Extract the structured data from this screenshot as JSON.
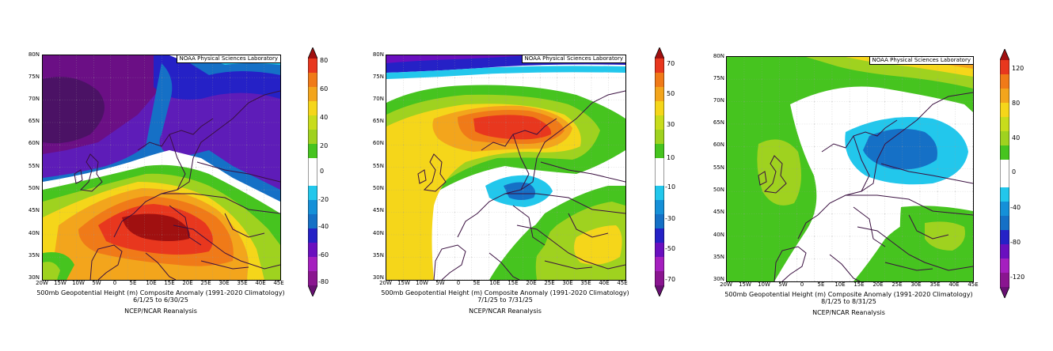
{
  "panels": [
    {
      "id": "june",
      "noaa_label": "NOAA Physical Sciences Laboratory",
      "caption": {
        "line1": "500mb Geopotential Height (m) Composite Anomaly (1991-2020 Climatology)",
        "line2": "6/1/25  to 6/30/25",
        "line3": "NCEP/NCAR Reanalysis"
      },
      "lat_labels": [
        "80N",
        "75N",
        "70N",
        "65N",
        "60N",
        "55N",
        "50N",
        "45N",
        "40N",
        "35N",
        "30N"
      ],
      "lon_labels": [
        "20W",
        "15W",
        "10W",
        "5W",
        "0",
        "5E",
        "10E",
        "15E",
        "20E",
        "25E",
        "30E",
        "35E",
        "40E",
        "45E"
      ],
      "colorbar": {
        "labels": [
          "80",
          "60",
          "40",
          "20",
          "0",
          "-20",
          "-40",
          "-60",
          "-80"
        ],
        "colors": [
          "#a01010",
          "#e8371e",
          "#f07a18",
          "#f3a51c",
          "#f5d61a",
          "#9fd21f",
          "#46c41f",
          "#ffffff",
          "#ffffff",
          "#22c7ec",
          "#1570c6",
          "#2521c6",
          "#6a0fbf",
          "#a51fbf",
          "#681073"
        ]
      }
    },
    {
      "id": "july",
      "noaa_label": "NOAA Physical Sciences Laboratory",
      "caption": {
        "line1": "500mb Geopotential Height (m) Composite Anomaly (1991-2020 Climatology)",
        "line2": "7/1/25  to 7/31/25",
        "line3": "NCEP/NCAR Reanalysis"
      },
      "lat_labels": [
        "80N",
        "75N",
        "70N",
        "65N",
        "60N",
        "55N",
        "50N",
        "45N",
        "40N",
        "35N",
        "30N"
      ],
      "lon_labels": [
        "20W",
        "15W",
        "10W",
        "5W",
        "0",
        "5E",
        "10E",
        "15E",
        "20E",
        "25E",
        "30E",
        "35E",
        "40E",
        "45E"
      ],
      "colorbar": {
        "labels": [
          "70",
          "50",
          "30",
          "10",
          "-10",
          "-30",
          "-50",
          "-70"
        ],
        "colors": [
          "#a01010",
          "#e8371e",
          "#f07a18",
          "#f3a51c",
          "#f5d61a",
          "#9fd21f",
          "#46c41f",
          "#ffffff",
          "#ffffff",
          "#22c7ec",
          "#1570c6",
          "#2521c6",
          "#6a0fbf",
          "#a51fbf",
          "#681073"
        ]
      }
    },
    {
      "id": "august",
      "noaa_label": "NOAA Physical Sciences Laboratory",
      "caption": {
        "line1": "500mb Geopotential Height (m) Composite Anomaly (1991-2020 Climatology)",
        "line2": "8/1/25  to 8/31/25",
        "line3": "NCEP/NCAR Reanalysis"
      },
      "lat_labels": [
        "80N",
        "75N",
        "70N",
        "65N",
        "60N",
        "55N",
        "50N",
        "45N",
        "40N",
        "35N",
        "30N"
      ],
      "lon_labels": [
        "20W",
        "15W",
        "10W",
        "5W",
        "0",
        "5E",
        "10E",
        "15E",
        "20E",
        "25E",
        "30E",
        "35E",
        "40E",
        "45E"
      ],
      "colorbar": {
        "labels": [
          "120",
          "80",
          "40",
          "0",
          "-40",
          "-80",
          "-120"
        ],
        "colors": [
          "#a01010",
          "#e8371e",
          "#f07a18",
          "#f3a51c",
          "#f5d61a",
          "#9fd21f",
          "#46c41f",
          "#ffffff",
          "#ffffff",
          "#22c7ec",
          "#1570c6",
          "#2521c6",
          "#6a0fbf",
          "#a51fbf",
          "#681073"
        ]
      }
    }
  ]
}
